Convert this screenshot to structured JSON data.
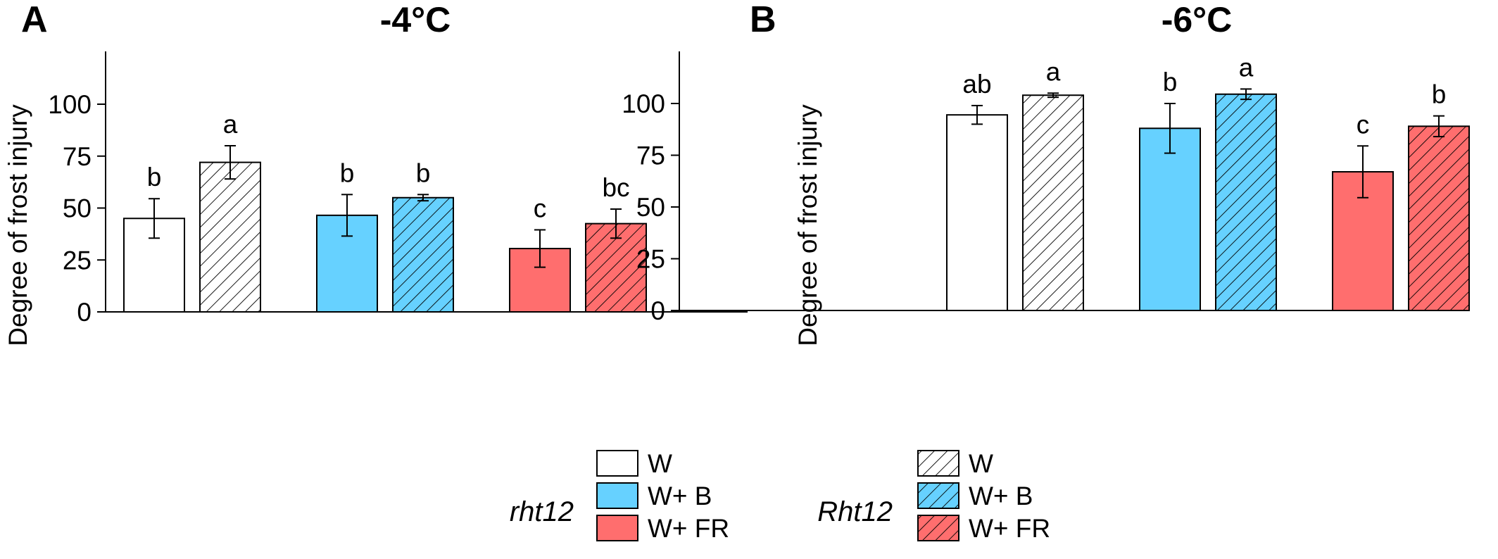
{
  "colors": {
    "W": "#ffffff",
    "W+ B": "#66d1ff",
    "W+ FR": "#ff6e6e",
    "stroke": "#000000"
  },
  "chart_data": [
    {
      "type": "bar",
      "panel": "A",
      "title": "-4°C",
      "ylabel": "Degree of frost injury",
      "xlabel": "",
      "ylim": [
        0,
        125
      ],
      "yticks": [
        0,
        25,
        50,
        75,
        100
      ],
      "grid": false,
      "categories": [
        "W",
        "W+ B",
        "W+ FR"
      ],
      "series": [
        {
          "name": "rht12",
          "pattern": "solid",
          "values": [
            45,
            46.5,
            30.5
          ],
          "errors": [
            9.5,
            10,
            9
          ],
          "letters": [
            "b",
            "b",
            "c"
          ]
        },
        {
          "name": "Rht12",
          "pattern": "hatched",
          "values": [
            72,
            55,
            42.5
          ],
          "errors": [
            8,
            1.5,
            7
          ],
          "letters": [
            "a",
            "b",
            "bc"
          ]
        }
      ]
    },
    {
      "type": "bar",
      "panel": "B",
      "title": "-6°C",
      "ylabel": "Degree of frost injury",
      "xlabel": "",
      "ylim": [
        0,
        125
      ],
      "yticks": [
        0,
        25,
        50,
        75,
        100
      ],
      "grid": false,
      "categories": [
        "W",
        "W+ B",
        "W+ FR"
      ],
      "series": [
        {
          "name": "rht12",
          "pattern": "solid",
          "values": [
            94.5,
            88,
            67
          ],
          "errors": [
            4.5,
            12,
            12.5
          ],
          "letters": [
            "ab",
            "b",
            "c"
          ]
        },
        {
          "name": "Rht12",
          "pattern": "hatched",
          "values": [
            104,
            104.5,
            89
          ],
          "errors": [
            1,
            2.5,
            5
          ],
          "letters": [
            "a",
            "a",
            "b"
          ]
        }
      ]
    }
  ],
  "legend": {
    "placement": "bottom",
    "groups": [
      {
        "label": "rht12",
        "pattern": "solid",
        "items": [
          "W",
          "W+ B",
          "W+ FR"
        ]
      },
      {
        "label": "Rht12",
        "pattern": "hatched",
        "items": [
          "W",
          "W+ B",
          "W+ FR"
        ]
      }
    ]
  }
}
